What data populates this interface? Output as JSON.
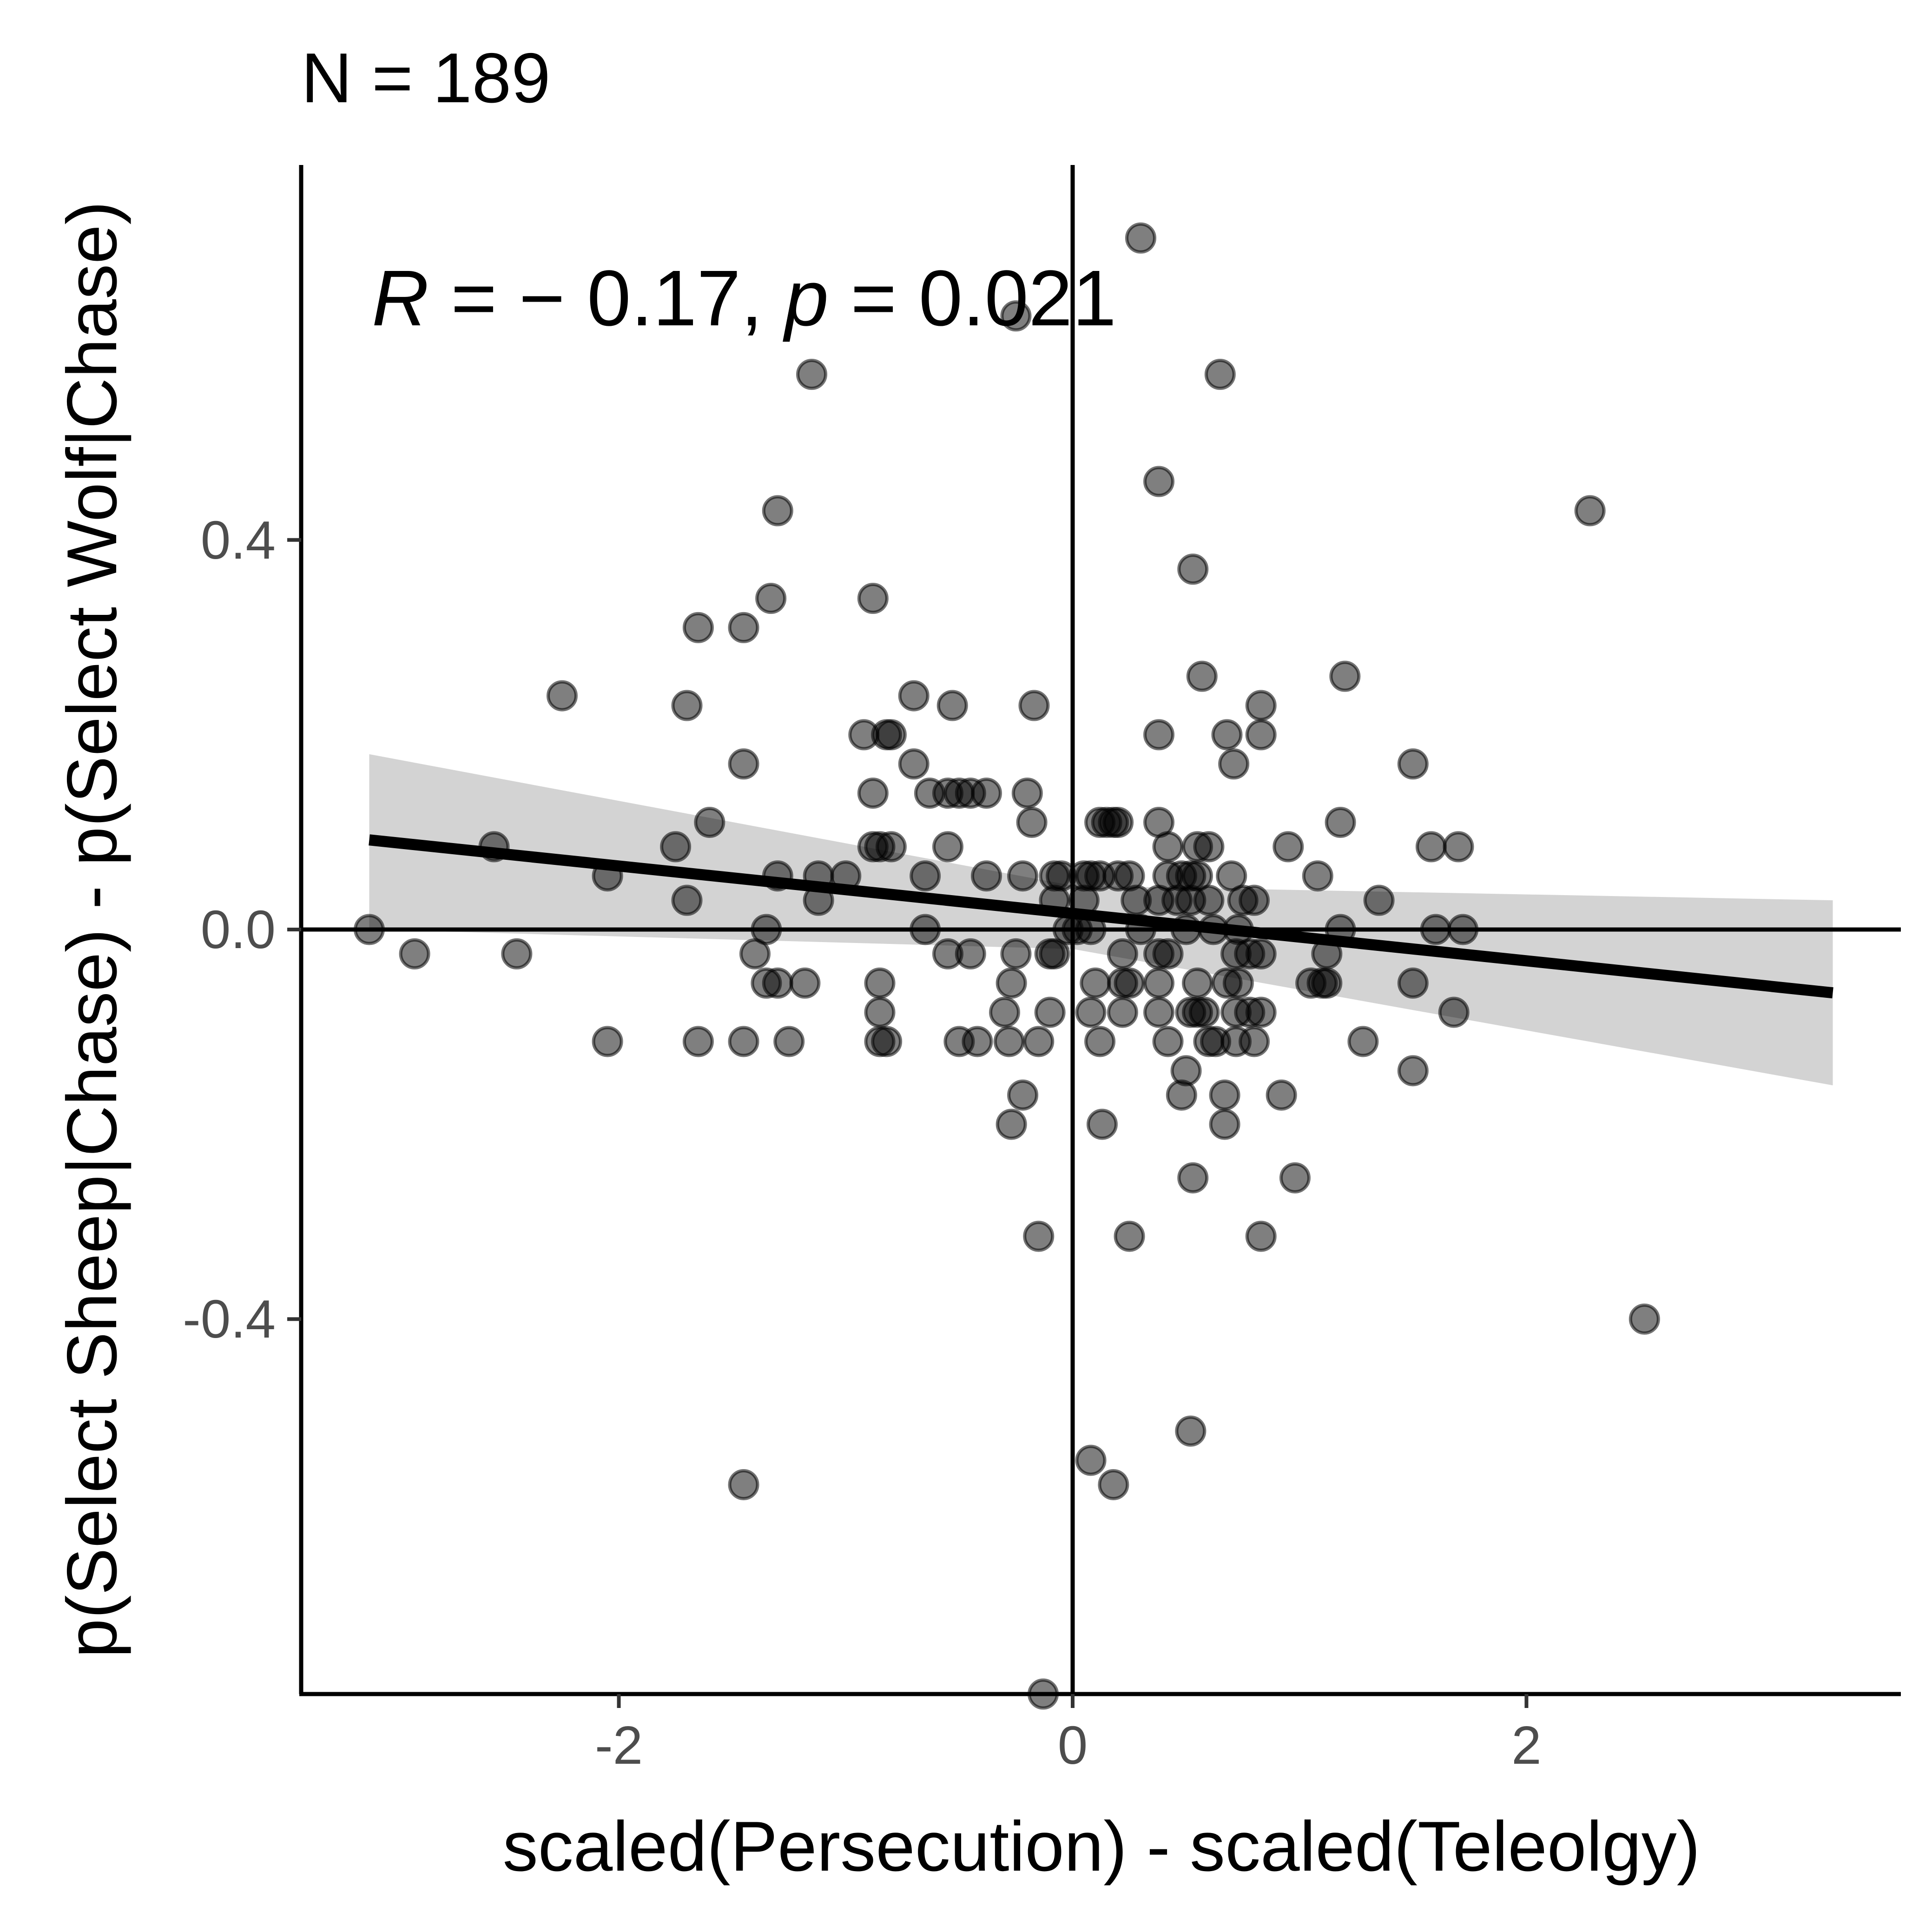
{
  "chart_data": {
    "type": "scatter",
    "title": "N = 189",
    "xlabel": "scaled(Persecution) - scaled(Teleolgy)",
    "ylabel": "p(Select Sheep|Chase) - p(Select Wolf|Chase)",
    "xlim": [
      -3.4,
      3.65
    ],
    "ylim": [
      -0.785,
      0.785
    ],
    "x_ticks": [
      -2,
      0,
      2
    ],
    "x_tick_labels": [
      "-2",
      "0",
      "2"
    ],
    "y_ticks": [
      -0.4,
      0.0,
      0.4
    ],
    "y_tick_labels": [
      "-0.4",
      "0.0",
      "0.4"
    ],
    "grid": false,
    "reference_lines": {
      "x": 0,
      "y": 0
    },
    "annotation": {
      "r_symbol": "R",
      "r_text": " = − 0.17, ",
      "p_symbol": "p",
      "p_text": " = 0.021"
    },
    "regression": {
      "x_range": [
        -3.1,
        3.35
      ],
      "line": [
        [
          -3.1,
          0.092
        ],
        [
          3.35,
          -0.065
        ]
      ],
      "ci_upper": [
        [
          -3.1,
          0.18
        ],
        [
          0.0,
          0.045
        ],
        [
          3.35,
          0.03
        ]
      ],
      "ci_lower": [
        [
          -3.1,
          0.0
        ],
        [
          0.0,
          -0.02
        ],
        [
          3.35,
          -0.16
        ]
      ]
    },
    "colors": {
      "points": "#000000",
      "line": "#000000",
      "ribbon": "#d3d3d3"
    },
    "points": [
      [
        0.3,
        0.71
      ],
      [
        -0.25,
        0.63
      ],
      [
        -1.15,
        0.57
      ],
      [
        0.65,
        0.57
      ],
      [
        0.38,
        0.46
      ],
      [
        -1.3,
        0.43
      ],
      [
        2.28,
        0.43
      ],
      [
        0.53,
        0.37
      ],
      [
        -1.33,
        0.34
      ],
      [
        -0.88,
        0.34
      ],
      [
        -1.65,
        0.31
      ],
      [
        -1.45,
        0.31
      ],
      [
        -2.25,
        0.24
      ],
      [
        0.57,
        0.26
      ],
      [
        1.2,
        0.26
      ],
      [
        -1.7,
        0.23
      ],
      [
        -0.7,
        0.24
      ],
      [
        -0.53,
        0.23
      ],
      [
        -0.17,
        0.23
      ],
      [
        0.83,
        0.23
      ],
      [
        -0.92,
        0.2
      ],
      [
        -0.82,
        0.2
      ],
      [
        -0.8,
        0.2
      ],
      [
        0.38,
        0.2
      ],
      [
        0.68,
        0.2
      ],
      [
        0.83,
        0.2
      ],
      [
        -1.45,
        0.17
      ],
      [
        -0.7,
        0.17
      ],
      [
        0.71,
        0.17
      ],
      [
        1.5,
        0.17
      ],
      [
        -0.88,
        0.14
      ],
      [
        -0.63,
        0.14
      ],
      [
        -0.55,
        0.14
      ],
      [
        -0.5,
        0.14
      ],
      [
        -0.45,
        0.14
      ],
      [
        -0.38,
        0.14
      ],
      [
        -0.2,
        0.14
      ],
      [
        -1.6,
        0.11
      ],
      [
        -0.18,
        0.11
      ],
      [
        0.12,
        0.11
      ],
      [
        0.15,
        0.11
      ],
      [
        0.18,
        0.11
      ],
      [
        0.2,
        0.11
      ],
      [
        0.38,
        0.11
      ],
      [
        1.18,
        0.11
      ],
      [
        -2.55,
        0.085
      ],
      [
        -1.75,
        0.085
      ],
      [
        -0.88,
        0.085
      ],
      [
        -0.85,
        0.085
      ],
      [
        -0.8,
        0.085
      ],
      [
        -0.55,
        0.085
      ],
      [
        0.42,
        0.085
      ],
      [
        0.55,
        0.085
      ],
      [
        0.6,
        0.085
      ],
      [
        0.95,
        0.085
      ],
      [
        1.58,
        0.085
      ],
      [
        1.7,
        0.085
      ],
      [
        -2.05,
        0.055
      ],
      [
        -1.3,
        0.055
      ],
      [
        -1.12,
        0.055
      ],
      [
        -1.0,
        0.055
      ],
      [
        -0.65,
        0.055
      ],
      [
        -0.38,
        0.055
      ],
      [
        -0.22,
        0.055
      ],
      [
        -0.08,
        0.055
      ],
      [
        -0.05,
        0.055
      ],
      [
        0.05,
        0.055
      ],
      [
        0.08,
        0.055
      ],
      [
        0.12,
        0.055
      ],
      [
        0.2,
        0.055
      ],
      [
        0.25,
        0.055
      ],
      [
        0.42,
        0.055
      ],
      [
        0.48,
        0.055
      ],
      [
        0.52,
        0.055
      ],
      [
        0.55,
        0.055
      ],
      [
        0.7,
        0.055
      ],
      [
        1.08,
        0.055
      ],
      [
        -1.7,
        0.03
      ],
      [
        -1.12,
        0.03
      ],
      [
        -0.08,
        0.03
      ],
      [
        0.05,
        0.03
      ],
      [
        0.28,
        0.03
      ],
      [
        0.38,
        0.03
      ],
      [
        0.46,
        0.03
      ],
      [
        0.52,
        0.03
      ],
      [
        0.6,
        0.03
      ],
      [
        0.75,
        0.03
      ],
      [
        0.8,
        0.03
      ],
      [
        1.35,
        0.03
      ],
      [
        -3.1,
        0.0
      ],
      [
        -1.35,
        0.0
      ],
      [
        -0.65,
        0.0
      ],
      [
        -0.02,
        0.0
      ],
      [
        0.02,
        0.0
      ],
      [
        0.08,
        0.0
      ],
      [
        0.3,
        0.0
      ],
      [
        0.5,
        0.0
      ],
      [
        0.62,
        0.0
      ],
      [
        0.73,
        0.0
      ],
      [
        1.18,
        0.0
      ],
      [
        1.6,
        0.0
      ],
      [
        1.72,
        0.0
      ],
      [
        -2.9,
        -0.025
      ],
      [
        -2.45,
        -0.025
      ],
      [
        -1.4,
        -0.025
      ],
      [
        -0.55,
        -0.025
      ],
      [
        -0.45,
        -0.025
      ],
      [
        -0.25,
        -0.025
      ],
      [
        -0.1,
        -0.025
      ],
      [
        -0.08,
        -0.025
      ],
      [
        0.22,
        -0.025
      ],
      [
        0.38,
        -0.025
      ],
      [
        0.42,
        -0.025
      ],
      [
        0.72,
        -0.025
      ],
      [
        0.78,
        -0.025
      ],
      [
        0.83,
        -0.025
      ],
      [
        1.12,
        -0.025
      ],
      [
        -1.35,
        -0.055
      ],
      [
        -1.3,
        -0.055
      ],
      [
        -1.18,
        -0.055
      ],
      [
        -0.85,
        -0.055
      ],
      [
        -0.27,
        -0.055
      ],
      [
        0.1,
        -0.055
      ],
      [
        0.22,
        -0.055
      ],
      [
        0.25,
        -0.055
      ],
      [
        0.38,
        -0.055
      ],
      [
        0.55,
        -0.055
      ],
      [
        0.68,
        -0.055
      ],
      [
        0.73,
        -0.055
      ],
      [
        1.05,
        -0.055
      ],
      [
        1.1,
        -0.055
      ],
      [
        1.12,
        -0.055
      ],
      [
        1.5,
        -0.055
      ],
      [
        -0.85,
        -0.085
      ],
      [
        -0.3,
        -0.085
      ],
      [
        -0.1,
        -0.085
      ],
      [
        0.08,
        -0.085
      ],
      [
        0.22,
        -0.085
      ],
      [
        0.38,
        -0.085
      ],
      [
        0.52,
        -0.085
      ],
      [
        0.55,
        -0.085
      ],
      [
        0.58,
        -0.085
      ],
      [
        0.72,
        -0.085
      ],
      [
        0.78,
        -0.085
      ],
      [
        0.83,
        -0.085
      ],
      [
        1.68,
        -0.085
      ],
      [
        -2.05,
        -0.115
      ],
      [
        -1.65,
        -0.115
      ],
      [
        -1.45,
        -0.115
      ],
      [
        -1.25,
        -0.115
      ],
      [
        -0.85,
        -0.115
      ],
      [
        -0.82,
        -0.115
      ],
      [
        -0.5,
        -0.115
      ],
      [
        -0.42,
        -0.115
      ],
      [
        -0.28,
        -0.115
      ],
      [
        -0.15,
        -0.115
      ],
      [
        0.12,
        -0.115
      ],
      [
        0.42,
        -0.115
      ],
      [
        0.6,
        -0.115
      ],
      [
        0.63,
        -0.115
      ],
      [
        0.72,
        -0.115
      ],
      [
        0.8,
        -0.115
      ],
      [
        1.28,
        -0.115
      ],
      [
        0.5,
        -0.145
      ],
      [
        1.5,
        -0.145
      ],
      [
        -0.22,
        -0.17
      ],
      [
        0.48,
        -0.17
      ],
      [
        0.67,
        -0.17
      ],
      [
        0.92,
        -0.17
      ],
      [
        -0.27,
        -0.2
      ],
      [
        0.13,
        -0.2
      ],
      [
        0.67,
        -0.2
      ],
      [
        0.53,
        -0.255
      ],
      [
        0.98,
        -0.255
      ],
      [
        -0.15,
        -0.315
      ],
      [
        0.25,
        -0.315
      ],
      [
        0.83,
        -0.315
      ],
      [
        2.52,
        -0.4
      ],
      [
        0.52,
        -0.515
      ],
      [
        0.08,
        -0.545
      ],
      [
        -1.45,
        -0.57
      ],
      [
        0.18,
        -0.57
      ],
      [
        -0.13,
        -0.785
      ]
    ]
  }
}
